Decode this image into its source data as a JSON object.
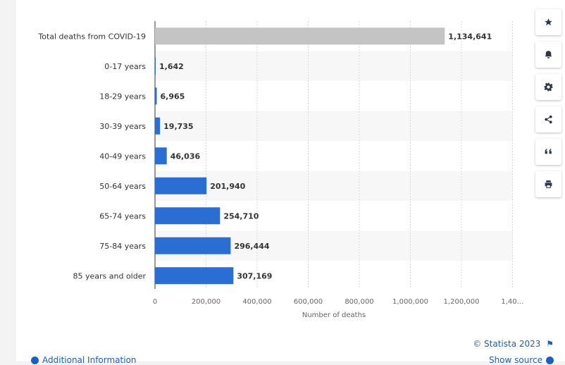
{
  "chart_data": {
    "type": "bar",
    "orientation": "horizontal",
    "categories": [
      "Total deaths from COVID-19",
      "0-17 years",
      "18-29 years",
      "30-39 years",
      "40-49 years",
      "50-64 years",
      "65-74 years",
      "75-84 years",
      "85 years and older"
    ],
    "values": [
      1134641,
      1642,
      6965,
      19735,
      46036,
      201940,
      254710,
      296444,
      307169
    ],
    "value_labels": [
      "1,134,641",
      "1,642",
      "6,965",
      "19,735",
      "46,036",
      "201,940",
      "254,710",
      "296,444",
      "307,169"
    ],
    "xlabel": "Number of deaths",
    "xticks": [
      "0",
      "200,000",
      "400,000",
      "600,000",
      "800,000",
      "1,000,000",
      "1,200,000",
      "1,40…"
    ],
    "xlim": [
      0,
      1400000
    ],
    "grid": true,
    "colors": {
      "total": "#c4c4c4",
      "age": "#2a6ed4"
    }
  },
  "toolbar": [
    "star-icon",
    "bell-icon",
    "gear-icon",
    "share-icon",
    "quote-icon",
    "print-icon"
  ],
  "footer": {
    "credit": "© Statista 2023",
    "additional_info": "Additional Information",
    "show_source": "Show source"
  }
}
